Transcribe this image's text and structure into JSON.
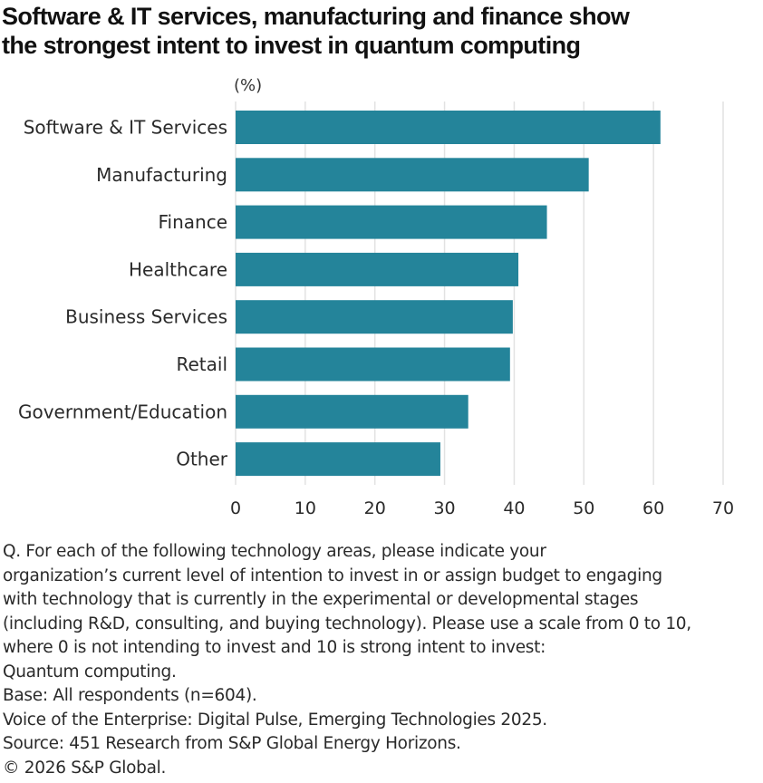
{
  "title_lines": [
    "Software & IT services, manufacturing and finance show",
    "the strongest intent to invest in quantum computing"
  ],
  "unit_label": "(%)",
  "colors": {
    "bar": "#24849a",
    "grid": "#e2e2e2"
  },
  "chart_data": {
    "type": "bar",
    "orientation": "horizontal",
    "title": "Software & IT services, manufacturing and finance show the strongest intent to invest in quantum computing",
    "xlabel": "(%)",
    "ylabel": "",
    "categories": [
      "Software & IT Services",
      "Manufacturing",
      "Finance",
      "Healthcare",
      "Business Services",
      "Retail",
      "Government/Education",
      "Other"
    ],
    "values": [
      61,
      50.7,
      44.7,
      40.6,
      39.8,
      39.4,
      33.4,
      29.4
    ],
    "xlim": [
      0,
      70
    ],
    "xticks": [
      0,
      10,
      20,
      30,
      40,
      50,
      60,
      70
    ],
    "xtick_labels": [
      "0",
      "10",
      "20",
      "30",
      "40",
      "50",
      "60",
      "70"
    ],
    "grid": true,
    "legend": "none"
  },
  "notes": [
    "Q. For each of the following technology areas, please indicate your",
    "organization’s current level of intention to invest in or assign budget to engaging",
    "with technology that is currently in the experimental or developmental stages",
    "(including R&D, consulting, and buying technology). Please use a scale from 0 to 10,",
    "where 0 is not intending to invest and 10 is strong intent to invest:",
    "Quantum computing.",
    "Base: All respondents (n=604).",
    "Voice of the Enterprise: Digital Pulse, Emerging Technologies 2025.",
    "Source: 451 Research from S&P Global Energy Horizons.",
    "© 2026 S&P Global."
  ]
}
